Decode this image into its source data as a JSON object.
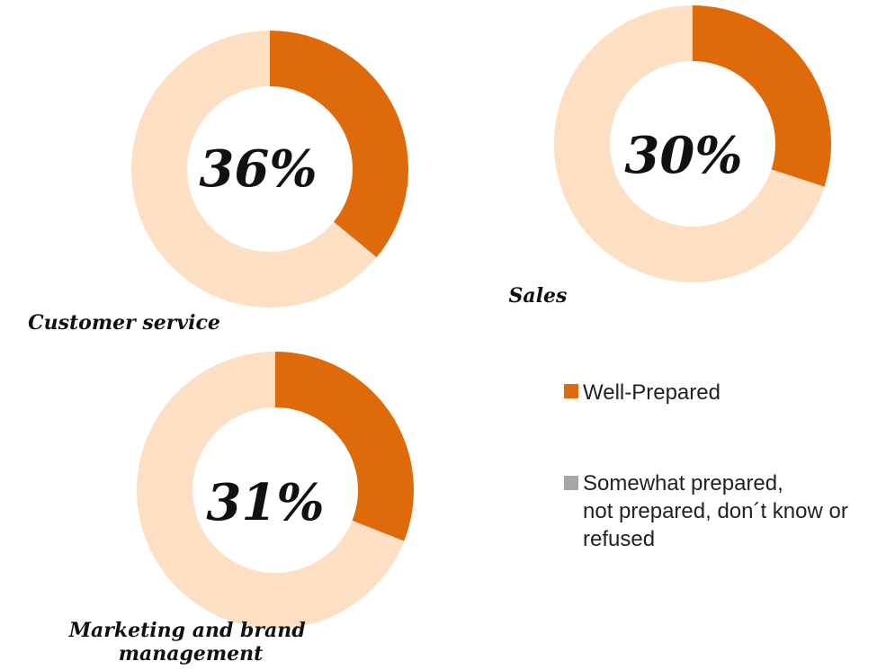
{
  "chart_data": [
    {
      "type": "pie",
      "title": "Customer service",
      "center_label": "36%",
      "categories": [
        "Well-Prepared",
        "Somewhat prepared, not prepared, don´t know or refused"
      ],
      "values": [
        36,
        64
      ]
    },
    {
      "type": "pie",
      "title": "Sales",
      "center_label": "30%",
      "categories": [
        "Well-Prepared",
        "Somewhat prepared, not prepared, don´t know or refused"
      ],
      "values": [
        30,
        70
      ]
    },
    {
      "type": "pie",
      "title": "Marketing and brand management",
      "center_label": "31%",
      "categories": [
        "Well-Prepared",
        "Somewhat prepared, not prepared, don´t know or refused"
      ],
      "values": [
        31,
        69
      ]
    }
  ],
  "legend": {
    "placement": "right",
    "items": [
      {
        "label": "Well-Prepared",
        "color": "#de6a0a"
      },
      {
        "label": "Somewhat prepared, not prepared, don´t know or refused",
        "color": "#a6a6a6"
      }
    ]
  },
  "colors": {
    "well_prepared": "#de6a0a",
    "other": "#fde0c4"
  }
}
